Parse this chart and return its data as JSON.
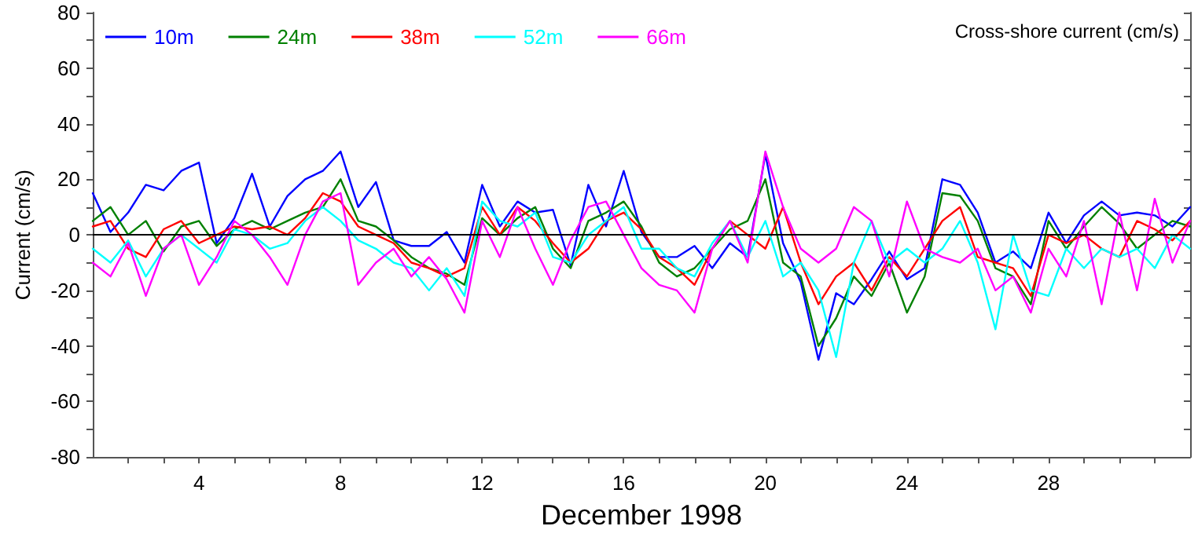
{
  "chart_data": {
    "type": "line",
    "xlabel": "December 1998",
    "ylabel": "Current (cm/s)",
    "annotations": [
      "Cross-shore current (cm/s)"
    ],
    "x": [
      1,
      1.5,
      2,
      2.5,
      3,
      3.5,
      4,
      4.5,
      5,
      5.5,
      6,
      6.5,
      7,
      7.5,
      8,
      8.5,
      9,
      9.5,
      10,
      10.5,
      11,
      11.5,
      12,
      12.5,
      13,
      13.5,
      14,
      14.5,
      15,
      15.5,
      16,
      16.5,
      17,
      17.5,
      18,
      18.5,
      19,
      19.5,
      20,
      20.5,
      21,
      21.5,
      22,
      22.5,
      23,
      23.5,
      24,
      24.5,
      25,
      25.5,
      26,
      26.5,
      27,
      27.5,
      28,
      28.5,
      29,
      29.5,
      30,
      30.5,
      31,
      31.5,
      32
    ],
    "series": [
      {
        "name": "10m",
        "color": "#0000ff",
        "values": [
          15,
          1,
          8,
          18,
          16,
          23,
          26,
          -3,
          6,
          22,
          3,
          14,
          20,
          23,
          30,
          10,
          19,
          -2,
          -4,
          -4,
          1,
          -10,
          18,
          3,
          12,
          8,
          9,
          -11,
          18,
          3,
          23,
          1,
          -8,
          -8,
          -4,
          -12,
          -3,
          -8,
          29,
          -3,
          -17,
          -45,
          -21,
          -25,
          -16,
          -6,
          -16,
          -12,
          20,
          18,
          8,
          -10,
          -6,
          -12,
          8,
          -3,
          7,
          12,
          7,
          8,
          7,
          3,
          10
        ]
      },
      {
        "name": "24m",
        "color": "#008000",
        "values": [
          5,
          10,
          0,
          5,
          -6,
          3,
          5,
          -4,
          2,
          5,
          2,
          5,
          8,
          10,
          20,
          5,
          3,
          -2,
          -8,
          -12,
          -14,
          -18,
          6,
          0,
          6,
          10,
          -5,
          -12,
          5,
          8,
          12,
          3,
          -10,
          -15,
          -12,
          -5,
          2,
          5,
          20,
          -10,
          -15,
          -40,
          -30,
          -15,
          -22,
          -10,
          -28,
          -15,
          15,
          14,
          5,
          -12,
          -15,
          -25,
          5,
          -5,
          3,
          10,
          4,
          -5,
          0,
          5,
          3
        ]
      },
      {
        "name": "38m",
        "color": "#ff0000",
        "values": [
          3,
          5,
          -5,
          -8,
          2,
          5,
          -3,
          0,
          3,
          2,
          3,
          0,
          6,
          15,
          12,
          3,
          0,
          -3,
          -10,
          -12,
          -15,
          -12,
          10,
          0,
          10,
          5,
          -3,
          -10,
          -5,
          5,
          8,
          2,
          -8,
          -12,
          -18,
          -5,
          5,
          0,
          -5,
          10,
          -10,
          -25,
          -15,
          -10,
          -20,
          -8,
          -15,
          -5,
          5,
          10,
          -8,
          -10,
          -12,
          -22,
          0,
          -3,
          0,
          -5,
          -8,
          5,
          2,
          -2,
          5
        ]
      },
      {
        "name": "52m",
        "color": "#00ffff",
        "values": [
          -5,
          -10,
          -2,
          -15,
          -5,
          0,
          -5,
          -10,
          2,
          0,
          -5,
          -3,
          5,
          10,
          5,
          -2,
          -5,
          -10,
          -12,
          -20,
          -12,
          -22,
          12,
          5,
          3,
          8,
          -8,
          -10,
          0,
          5,
          10,
          -5,
          -5,
          -12,
          -15,
          -3,
          5,
          -8,
          5,
          -15,
          -10,
          -20,
          -44,
          -10,
          5,
          -10,
          -5,
          -10,
          -5,
          5,
          -10,
          -34,
          0,
          -20,
          -22,
          -5,
          -12,
          -5,
          -8,
          -5,
          -12,
          0,
          -5
        ]
      },
      {
        "name": "66m",
        "color": "#ff00ff",
        "values": [
          -10,
          -15,
          -3,
          -22,
          -5,
          0,
          -18,
          -8,
          5,
          0,
          -8,
          -18,
          0,
          12,
          15,
          -18,
          -10,
          -5,
          -15,
          -8,
          -16,
          -28,
          5,
          -8,
          10,
          -5,
          -18,
          -2,
          10,
          12,
          0,
          -12,
          -18,
          -20,
          -28,
          -5,
          5,
          -10,
          30,
          10,
          -5,
          -10,
          -5,
          10,
          5,
          -15,
          12,
          -5,
          -8,
          -10,
          -5,
          -20,
          -15,
          -28,
          -5,
          -15,
          5,
          -25,
          8,
          -20,
          13,
          -10,
          5
        ]
      }
    ],
    "xlim": [
      1,
      32
    ],
    "xticks": [
      {
        "value": 2,
        "label": null
      },
      {
        "value": 3,
        "label": null
      },
      4,
      {
        "value": 5,
        "label": null
      },
      {
        "value": 6,
        "label": null
      },
      {
        "value": 7,
        "label": null
      },
      8,
      {
        "value": 9,
        "label": null
      },
      {
        "value": 10,
        "label": null
      },
      {
        "value": 11,
        "label": null
      },
      12,
      {
        "value": 13,
        "label": null
      },
      {
        "value": 14,
        "label": null
      },
      {
        "value": 15,
        "label": null
      },
      16,
      {
        "value": 17,
        "label": null
      },
      {
        "value": 18,
        "label": null
      },
      {
        "value": 19,
        "label": null
      },
      20,
      {
        "value": 21,
        "label": null
      },
      {
        "value": 22,
        "label": null
      },
      {
        "value": 23,
        "label": null
      },
      24,
      {
        "value": 25,
        "label": null
      },
      {
        "value": 26,
        "label": null
      },
      {
        "value": 27,
        "label": null
      },
      28,
      {
        "value": 29,
        "label": null
      },
      {
        "value": 30,
        "label": null
      },
      {
        "value": 31,
        "label": null
      }
    ],
    "ylim": [
      -80,
      80
    ],
    "yticks": [
      -80,
      {
        "value": -70,
        "label": null
      },
      -60,
      {
        "value": -50,
        "label": null
      },
      -40,
      {
        "value": -30,
        "label": null
      },
      -20,
      {
        "value": -10,
        "label": null
      },
      0,
      {
        "value": 10,
        "label": null
      },
      20,
      {
        "value": 30,
        "label": null
      },
      40,
      {
        "value": 50,
        "label": null
      },
      60,
      {
        "value": 70,
        "label": null
      },
      80
    ],
    "ref_lines": [
      {
        "axis": "y",
        "value": 0,
        "color": "#000000"
      }
    ],
    "grid": false,
    "legend": "top left",
    "marker": "none",
    "line_style": "solid"
  }
}
